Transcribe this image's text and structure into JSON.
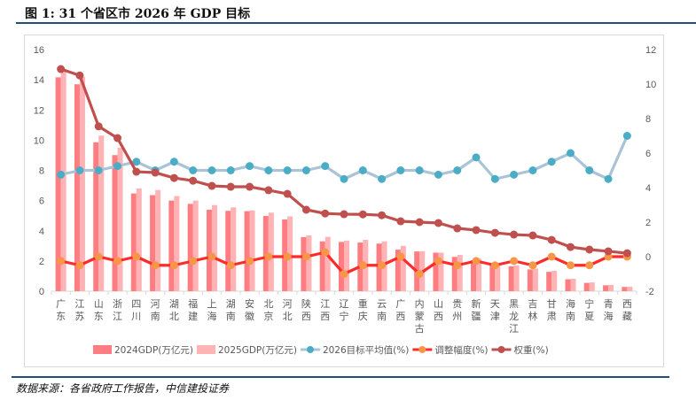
{
  "title": "图 1: 31 个省区市 2026 年 GDP 目标",
  "source": "数据来源：各省政府工作报告，中信建投证券",
  "chart_data": {
    "type": "bar",
    "title": "图 1: 31 个省区市 2026 年 GDP 目标",
    "categories": [
      "广东",
      "江苏",
      "山东",
      "浙江",
      "四川",
      "河南",
      "湖北",
      "福建",
      "上海",
      "湖南",
      "安徽",
      "北京",
      "河北",
      "陕西",
      "江西",
      "辽宁",
      "重庆",
      "云南",
      "广西",
      "内蒙古",
      "山西",
      "贵州",
      "新疆",
      "天津",
      "黑龙江",
      "吉林",
      "甘肃",
      "海南",
      "宁夏",
      "青海",
      "西藏"
    ],
    "left_axis": {
      "ylim": [
        0,
        16
      ],
      "ticks": [
        "0",
        "2",
        "4",
        "6",
        "8",
        "10",
        "12",
        "14",
        "16"
      ]
    },
    "right_axis": {
      "ylim": [
        -2,
        12
      ],
      "ticks": [
        "-2",
        "0",
        "2",
        "4",
        "6",
        "8",
        "10",
        "12"
      ]
    },
    "legend_position": "bottom",
    "series": [
      {
        "name": "2024GDP(万亿元)",
        "type": "bar",
        "axis": "left",
        "color": "#ff7c80",
        "values": [
          14.16,
          13.7,
          9.86,
          9.01,
          6.47,
          6.36,
          6.0,
          5.78,
          5.39,
          5.32,
          5.3,
          4.98,
          4.75,
          3.58,
          3.3,
          3.26,
          3.22,
          3.15,
          2.75,
          2.63,
          2.55,
          2.27,
          2.05,
          1.8,
          1.65,
          1.44,
          1.28,
          0.79,
          0.55,
          0.39,
          0.28
        ]
      },
      {
        "name": "2025GDP(万亿元)",
        "type": "bar",
        "axis": "left",
        "color": "#ffb3b5",
        "values": [
          14.6,
          14.2,
          10.3,
          9.5,
          6.8,
          6.7,
          6.3,
          6.0,
          5.7,
          5.55,
          5.35,
          5.2,
          4.95,
          3.7,
          3.6,
          3.35,
          3.4,
          3.3,
          3.0,
          2.65,
          2.55,
          2.4,
          2.15,
          1.85,
          1.7,
          1.5,
          1.35,
          0.82,
          0.58,
          0.42,
          0.3
        ]
      },
      {
        "name": "2026目标平均值(%)",
        "type": "line",
        "axis": "right",
        "color": "#a9c4d6",
        "marker": "#4bacc6",
        "values": [
          4.75,
          5,
          5,
          5.25,
          5.5,
          5,
          5.5,
          5,
          5,
          5,
          5.25,
          5,
          5,
          5,
          5.25,
          4.5,
          5,
          4.5,
          5,
          5,
          4.75,
          5,
          5.75,
          4.5,
          4.75,
          5,
          5.5,
          6,
          5,
          4.5,
          7
        ]
      },
      {
        "name": "调整幅度(%)",
        "type": "line",
        "axis": "right",
        "color": "#ff2a2a",
        "marker": "#f79646",
        "values": [
          -0.25,
          -0.5,
          0,
          -0.25,
          0,
          -0.5,
          -0.5,
          -0.25,
          0,
          -0.5,
          -0.25,
          0,
          0,
          0,
          0.25,
          -1,
          -0.5,
          -0.5,
          0,
          -1,
          -0.25,
          -0.5,
          -0.25,
          -0.5,
          -0.25,
          -0.5,
          0,
          -0.5,
          -0.5,
          0,
          0
        ]
      },
      {
        "name": "权重(%)",
        "type": "line",
        "axis": "right",
        "color": "#c0504d",
        "marker": "#c0504d",
        "values": [
          10.87,
          10.5,
          7.55,
          6.87,
          4.92,
          4.87,
          4.56,
          4.4,
          4.1,
          4.05,
          4.05,
          3.85,
          3.64,
          2.72,
          2.5,
          2.46,
          2.45,
          2.4,
          2.05,
          2.0,
          1.95,
          1.64,
          1.54,
          1.38,
          1.28,
          1.23,
          0.97,
          0.56,
          0.41,
          0.31,
          0.2
        ]
      }
    ]
  }
}
